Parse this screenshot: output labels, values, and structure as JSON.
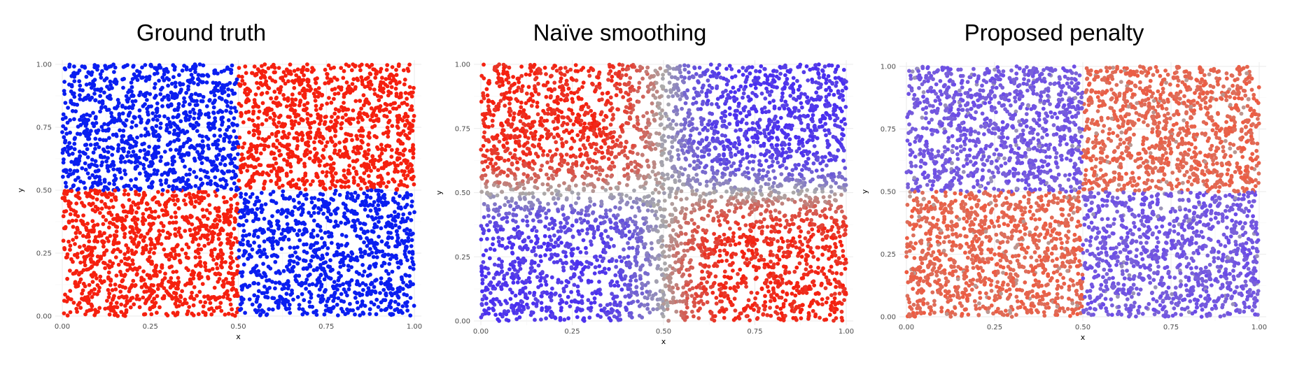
{
  "chart_data": [
    {
      "type": "scatter",
      "title": "Ground truth",
      "xlabel": "x",
      "ylabel": "y",
      "xlim": [
        0,
        1
      ],
      "ylim": [
        0,
        1
      ],
      "xticks": [
        "0.00",
        "0.25",
        "0.50",
        "0.75",
        "1.00"
      ],
      "yticks": [
        "0.00",
        "0.25",
        "0.50",
        "0.75",
        "1.00"
      ],
      "grid": true,
      "pattern": "checkerboard 2x2: blue where (x<0.5, y>0.5) and (x>0.5, y<0.5); red elsewhere",
      "color_scale": {
        "low": "#0a1ef0",
        "mid": "#aaaaaa",
        "high": "#f5200f"
      },
      "smoothing": "none"
    },
    {
      "type": "scatter",
      "title": "Naïve smoothing",
      "xlabel": "x",
      "ylabel": "y",
      "xlim": [
        0,
        1
      ],
      "ylim": [
        0,
        1
      ],
      "xticks": [
        "0.00",
        "0.25",
        "0.50",
        "0.75",
        "1.00"
      ],
      "yticks": [
        "0.00",
        "0.25",
        "0.50",
        "0.75",
        "1.00"
      ],
      "grid": true,
      "pattern": "checkerboard 2x2 with smooth transitions at boundaries",
      "color_scale": {
        "low": "#4a2ff0",
        "mid": "#aaaaaa",
        "high": "#f5200f"
      },
      "smoothing": "wide"
    },
    {
      "type": "scatter",
      "title": "Proposed penalty",
      "xlabel": "x",
      "ylabel": "y",
      "xlim": [
        0,
        1
      ],
      "ylim": [
        0,
        1
      ],
      "xticks": [
        "0.00",
        "0.25",
        "0.50",
        "0.75",
        "1.00"
      ],
      "yticks": [
        "0.00",
        "0.25",
        "0.50",
        "0.75",
        "1.00"
      ],
      "grid": true,
      "pattern": "checkerboard 2x2 with sharp boundaries and softened colors",
      "color_scale": {
        "low": "#6a4ae8",
        "mid": "#aaaaaa",
        "high": "#ee5a40"
      },
      "smoothing": "sharp"
    }
  ]
}
